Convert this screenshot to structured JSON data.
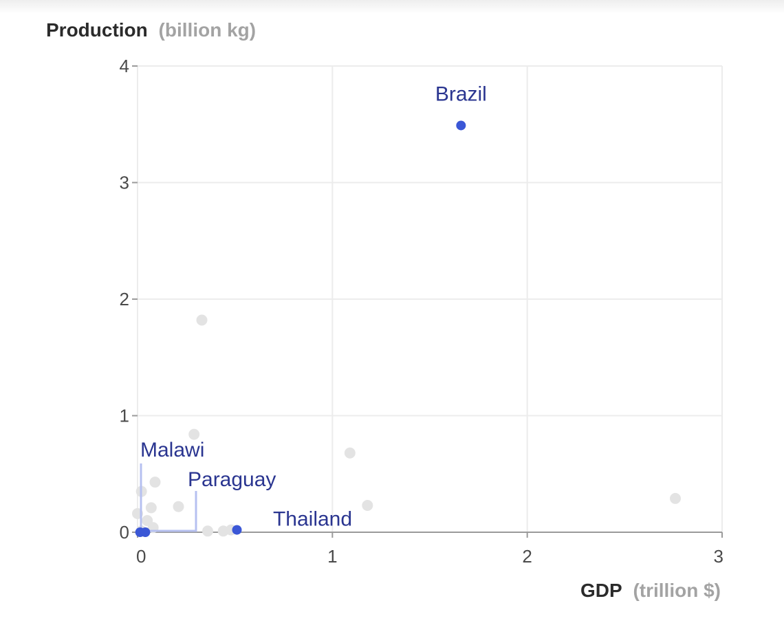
{
  "chart_data": {
    "type": "scatter",
    "title": "",
    "ylabel": "Production",
    "ylabel_unit": "(billion kg)",
    "xlabel": "GDP",
    "xlabel_unit": "(trillion $)",
    "xlim": [
      0,
      3
    ],
    "ylim": [
      0,
      4
    ],
    "x_ticks": [
      0,
      1,
      2,
      3
    ],
    "y_ticks": [
      0,
      1,
      2,
      3,
      4
    ],
    "grid": true,
    "highlight_color": "#3b57d6",
    "background_point_color": "#e3e3e3",
    "label_color": "#2a3590",
    "connector_color": "#b6c0f0",
    "highlighted": [
      {
        "name": "Brazil",
        "x": 1.66,
        "y": 3.49
      },
      {
        "name": "Thailand",
        "x": 0.51,
        "y": 0.02
      },
      {
        "name": "Malawi",
        "x": 0.013,
        "y": 0.0
      },
      {
        "name": "Paraguay",
        "x": 0.04,
        "y": 0.0
      }
    ],
    "background_points": [
      {
        "x": 0.33,
        "y": 1.82
      },
      {
        "x": 0.29,
        "y": 0.84
      },
      {
        "x": 1.09,
        "y": 0.68
      },
      {
        "x": 2.76,
        "y": 0.29
      },
      {
        "x": 1.18,
        "y": 0.23
      },
      {
        "x": 0.09,
        "y": 0.43
      },
      {
        "x": 0.02,
        "y": 0.35
      },
      {
        "x": 0.0,
        "y": 0.16
      },
      {
        "x": 0.07,
        "y": 0.21
      },
      {
        "x": 0.21,
        "y": 0.22
      },
      {
        "x": 0.05,
        "y": 0.1
      },
      {
        "x": 0.08,
        "y": 0.04
      },
      {
        "x": 0.36,
        "y": 0.01
      },
      {
        "x": 0.44,
        "y": 0.01
      },
      {
        "x": 0.48,
        "y": 0.02
      },
      {
        "x": 0.02,
        "y": 0.01
      }
    ]
  }
}
